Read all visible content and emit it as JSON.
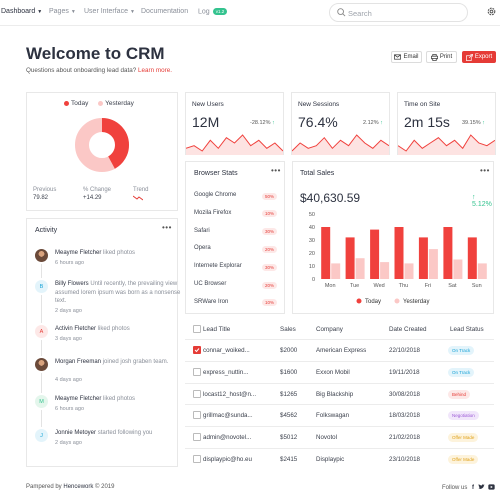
{
  "nav": {
    "items": [
      {
        "label": "Dashboard",
        "caret": true,
        "active": true
      },
      {
        "label": "Pages",
        "caret": true,
        "active": false
      },
      {
        "label": "User Interface",
        "caret": true,
        "active": false
      },
      {
        "label": "Documentation",
        "caret": false,
        "active": false
      },
      {
        "label": "Log",
        "caret": false,
        "active": false
      }
    ],
    "log_badge": "v1.2",
    "search_placeholder": "Search"
  },
  "hero": {
    "title": "Welcome to CRM",
    "subtitle": "Questions about onboarding lead data?",
    "link": "Learn more."
  },
  "buttons": {
    "email": "Email",
    "print": "Print",
    "export": "Export"
  },
  "donut": {
    "legend_today": "Today",
    "legend_yesterday": "Yesterday",
    "today_share": 0.42,
    "previous_label": "Previous",
    "previous_value": "79.82",
    "change_label": "% Change",
    "change_value": "+14.29",
    "trend_label": "Trend"
  },
  "stats": [
    {
      "title": "New Users",
      "value": "12M",
      "pct": "-28.12%",
      "spark": [
        5,
        6,
        4,
        8,
        5,
        9,
        7,
        10,
        6,
        8,
        5,
        7,
        4
      ]
    },
    {
      "title": "New Sessions",
      "value": "76.4%",
      "pct": "2.12%",
      "spark": [
        4,
        7,
        5,
        6,
        9,
        5,
        8,
        6,
        10,
        7,
        5,
        8,
        6
      ]
    },
    {
      "title": "Time on Site",
      "value": "2m 15s",
      "pct": "39.15%",
      "spark": [
        6,
        4,
        8,
        5,
        7,
        9,
        6,
        8,
        5,
        10,
        7,
        6,
        8
      ]
    }
  ],
  "browser_stats": {
    "title": "Browser Stats",
    "rows": [
      {
        "name": "Google Chrome",
        "pct": "50%"
      },
      {
        "name": "Mozila Firefox",
        "pct": "10%"
      },
      {
        "name": "Safari",
        "pct": "30%"
      },
      {
        "name": "Opera",
        "pct": "20%"
      },
      {
        "name": "Internete Explorar",
        "pct": "30%"
      },
      {
        "name": "UC Browser",
        "pct": "20%"
      },
      {
        "name": "SRWare Iron",
        "pct": "10%"
      }
    ]
  },
  "total_sales": {
    "title": "Total Sales",
    "value": "$40,630.59",
    "pct": "5.12%",
    "legend_today": "Today",
    "legend_yesterday": "Yesterday",
    "colors": {
      "today": "#f0413d",
      "yesterday": "#fbc8c6"
    }
  },
  "chart_data": {
    "type": "bar",
    "categories": [
      "Mon",
      "Tue",
      "Wed",
      "Thu",
      "Fri",
      "Sat",
      "Sun"
    ],
    "series": [
      {
        "name": "Today",
        "values": [
          40,
          32,
          38,
          40,
          32,
          40,
          32
        ]
      },
      {
        "name": "Yesterday",
        "values": [
          12,
          16,
          13,
          12,
          23,
          15,
          12
        ]
      }
    ],
    "ylim": [
      0,
      50
    ],
    "yticks": [
      "0",
      "10",
      "20",
      "30",
      "40",
      "50"
    ],
    "legend": "bottom"
  },
  "activity": {
    "title": "Activity",
    "items": [
      {
        "avatar": "photo",
        "initial": "",
        "name": "Meayme Fletcher",
        "text": " liked photos",
        "time": "6 hours ago"
      },
      {
        "avatar": "letter",
        "initial": "B",
        "name": "Billy Flowers",
        "text": " Until recently, the prevailing view assumed lorem ipsum was born as a nonsense text.",
        "time": "2 days ago"
      },
      {
        "avatar": "letter",
        "initial": "A",
        "name": "Activin Fletcher",
        "text": " liked photos",
        "time": "3 days ago"
      },
      {
        "avatar": "photo",
        "initial": "",
        "name": "Morgan Freeman",
        "text": " joined josh graben team.",
        "time": "4 days ago"
      },
      {
        "avatar": "letter",
        "initial": "M",
        "name": "Meayme Fletcher",
        "text": " liked photos",
        "time": "6 hours ago"
      },
      {
        "avatar": "letter",
        "initial": "J",
        "name": "Jonnie Metoyer",
        "text": " started following you",
        "time": "2 days ago"
      }
    ]
  },
  "leads": {
    "headers": [
      "Lead Title",
      "Sales",
      "Company",
      "Date Created",
      "Lead Status"
    ],
    "rows": [
      {
        "title": "connar_woiked...",
        "sales": "$2000",
        "company": "American Express",
        "date": "22/10/2018",
        "status": "On Track",
        "status_color": "#17a2d6",
        "status_bg": "#e3f4fb",
        "checked": true
      },
      {
        "title": "express_nuttin...",
        "sales": "$1600",
        "company": "Exxon Mobil",
        "date": "19/11/2018",
        "status": "On Track",
        "status_color": "#17a2d6",
        "status_bg": "#e3f4fb",
        "checked": false
      },
      {
        "title": "locast12_host@n...",
        "sales": "$1265",
        "company": "Big Blackship",
        "date": "30/08/2018",
        "status": "Behind",
        "status_color": "#e53b36",
        "status_bg": "#fde8e7",
        "checked": false
      },
      {
        "title": "grillmac@sunda...",
        "sales": "$4562",
        "company": "Folkswagan",
        "date": "18/03/2018",
        "status": "Negotiation",
        "status_color": "#9b59d6",
        "status_bg": "#f1e6fb",
        "checked": false
      },
      {
        "title": "admin@novotel...",
        "sales": "$5012",
        "company": "Novotol",
        "date": "21/02/2018",
        "status": "Offer Made",
        "status_color": "#e0a21c",
        "status_bg": "#fdf3dc",
        "checked": false
      },
      {
        "title": "displaypic@ho.eu",
        "sales": "$2415",
        "company": "Displaypic",
        "date": "23/10/2018",
        "status": "Offer Made",
        "status_color": "#e0a21c",
        "status_bg": "#fdf3dc",
        "checked": false
      }
    ]
  },
  "footer": {
    "left_prefix": "Pampered by ",
    "brand": "Hencework",
    "year": " © 2019",
    "follow": "Follow us"
  }
}
